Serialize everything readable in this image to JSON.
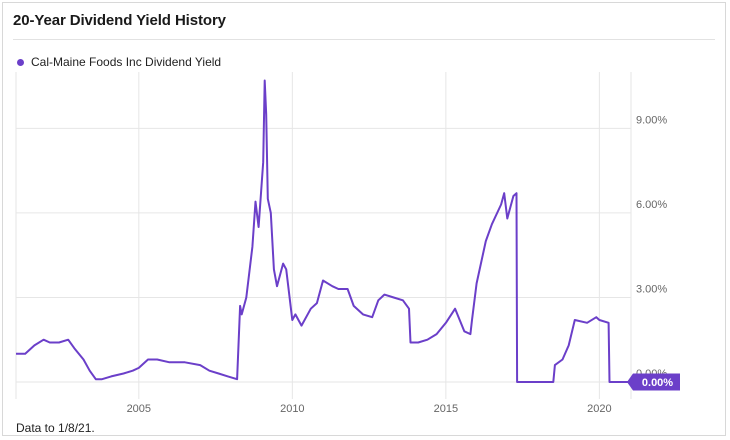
{
  "title": "20-Year Dividend Yield History",
  "footnote": "Data to 1/8/21.",
  "colors": {
    "series": "#6b3fc9",
    "grid": "#e6e6e6",
    "badge": "#6b3fc9"
  },
  "chart_data": {
    "type": "line",
    "title": "20-Year Dividend Yield History",
    "xlabel": "",
    "ylabel": "",
    "xlim": [
      2001.0,
      2021.03
    ],
    "ylim": [
      0,
      11
    ],
    "grid": true,
    "legend": "top-left",
    "x_ticks": [
      2005,
      2010,
      2015,
      2020
    ],
    "x_tick_labels": [
      "2005",
      "2010",
      "2015",
      "2020"
    ],
    "y_ticks": [
      0,
      3,
      6,
      9
    ],
    "y_tick_labels": [
      "0.00%",
      "3.00%",
      "6.00%",
      "9.00%"
    ],
    "last_value_label": "0.00%",
    "series": [
      {
        "name": "Cal-Maine Foods Inc Dividend Yield",
        "x": [
          2001.0,
          2001.3,
          2001.6,
          2001.9,
          2002.1,
          2002.4,
          2002.7,
          2002.9,
          2003.2,
          2003.4,
          2003.6,
          2003.8,
          2004.1,
          2004.5,
          2004.8,
          2005.0,
          2005.3,
          2005.6,
          2006.0,
          2006.5,
          2007.0,
          2007.3,
          2007.6,
          2007.9,
          2008.2,
          2008.3,
          2008.35,
          2008.5,
          2008.7,
          2008.8,
          2008.9,
          2009.0,
          2009.05,
          2009.1,
          2009.15,
          2009.2,
          2009.3,
          2009.4,
          2009.5,
          2009.7,
          2009.8,
          2010.0,
          2010.1,
          2010.3,
          2010.6,
          2010.8,
          2011.0,
          2011.3,
          2011.5,
          2011.8,
          2012.0,
          2012.3,
          2012.6,
          2012.8,
          2013.0,
          2013.3,
          2013.6,
          2013.8,
          2013.85,
          2014.1,
          2014.4,
          2014.7,
          2015.0,
          2015.3,
          2015.6,
          2015.8,
          2015.85,
          2016.0,
          2016.3,
          2016.5,
          2016.8,
          2016.9,
          2017.0,
          2017.2,
          2017.3,
          2017.32,
          2018.5,
          2018.55,
          2018.8,
          2019.0,
          2019.2,
          2019.6,
          2019.9,
          2020.0,
          2020.3,
          2020.33,
          2021.03
        ],
        "values": [
          1.0,
          1.0,
          1.3,
          1.5,
          1.4,
          1.4,
          1.5,
          1.2,
          0.8,
          0.4,
          0.1,
          0.1,
          0.2,
          0.3,
          0.4,
          0.5,
          0.8,
          0.8,
          0.7,
          0.7,
          0.6,
          0.4,
          0.3,
          0.2,
          0.1,
          2.7,
          2.4,
          3.0,
          4.8,
          6.4,
          5.5,
          7.0,
          7.8,
          10.7,
          9.5,
          6.5,
          6.0,
          4.0,
          3.4,
          4.2,
          4.0,
          2.2,
          2.4,
          2.0,
          2.6,
          2.8,
          3.6,
          3.4,
          3.3,
          3.3,
          2.7,
          2.4,
          2.3,
          2.9,
          3.1,
          3.0,
          2.9,
          2.6,
          1.4,
          1.4,
          1.5,
          1.7,
          2.1,
          2.6,
          1.8,
          1.7,
          2.2,
          3.5,
          5.0,
          5.6,
          6.3,
          6.7,
          5.8,
          6.6,
          6.7,
          0.0,
          0.0,
          0.6,
          0.8,
          1.3,
          2.2,
          2.1,
          2.3,
          2.2,
          2.1,
          0.0,
          0.0
        ]
      }
    ]
  }
}
